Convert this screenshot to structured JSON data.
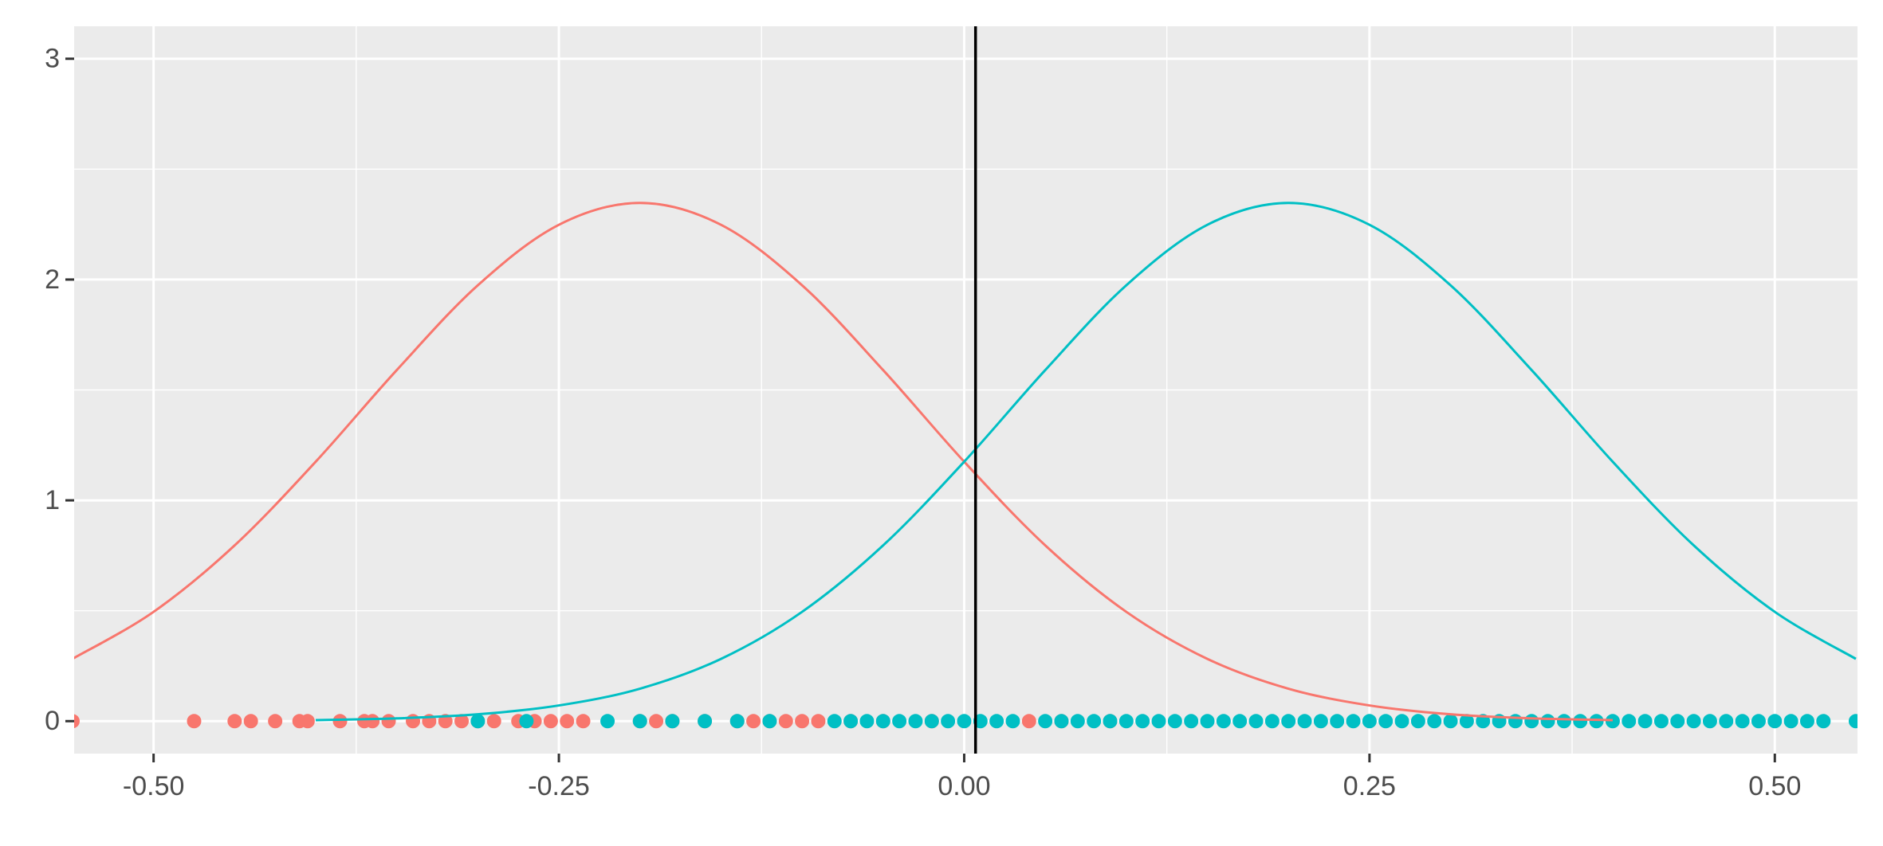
{
  "chart_data": {
    "type": "line",
    "xlim": [
      -0.549,
      0.551
    ],
    "ylim": [
      -0.147,
      3.147
    ],
    "xticks": [
      {
        "value": -0.5,
        "label": "-0.50"
      },
      -0.25,
      {
        "value": 0,
        "label": "0.00"
      },
      0.25,
      {
        "value": 0.5,
        "label": "0.50"
      }
    ],
    "yticks": [
      0,
      1,
      2,
      3
    ],
    "grid": true,
    "vline": {
      "x": 0.007,
      "color": "#000000"
    },
    "series": [
      {
        "color": "#F8766D",
        "x": [
          -0.55,
          -0.5,
          -0.45,
          -0.4,
          -0.35,
          -0.3,
          -0.25,
          -0.2,
          -0.15,
          -0.1,
          -0.05,
          0,
          0.05,
          0.1,
          0.15,
          0.2,
          0.25,
          0.3,
          0.35,
          0.4
        ],
        "values": [
          0.282,
          0.495,
          0.796,
          1.175,
          1.59,
          1.974,
          2.248,
          2.347,
          2.248,
          1.974,
          1.59,
          1.175,
          0.796,
          0.495,
          0.282,
          0.147,
          0.071,
          0.031,
          0.0125,
          0.0046
        ]
      },
      {
        "color": "#00BFC4",
        "x": [
          -0.4,
          -0.35,
          -0.3,
          -0.25,
          -0.2,
          -0.15,
          -0.1,
          -0.05,
          0,
          0.05,
          0.1,
          0.15,
          0.2,
          0.25,
          0.3,
          0.35,
          0.4,
          0.45,
          0.5,
          0.55
        ],
        "values": [
          0.0046,
          0.0125,
          0.031,
          0.071,
          0.147,
          0.282,
          0.495,
          0.796,
          1.175,
          1.59,
          1.974,
          2.248,
          2.347,
          2.248,
          1.974,
          1.59,
          1.175,
          0.796,
          0.495,
          0.282
        ]
      }
    ],
    "points": [
      {
        "color": "#F8766D",
        "x": [
          -0.55,
          -0.475,
          -0.45,
          -0.44,
          -0.425,
          -0.41,
          -0.405,
          -0.385,
          -0.37,
          -0.365,
          -0.355,
          -0.34,
          -0.33,
          -0.32,
          -0.31,
          -0.3,
          -0.29,
          -0.275,
          -0.265,
          -0.255,
          -0.245,
          -0.235,
          -0.2,
          -0.19,
          -0.18,
          -0.16,
          -0.14,
          -0.13,
          -0.12,
          -0.11,
          -0.1,
          -0.09,
          -0.07,
          -0.05,
          -0.02,
          0.04,
          0.06,
          0.09
        ],
        "values": [
          0,
          0,
          0,
          0,
          0,
          0,
          0,
          0,
          0,
          0,
          0,
          0,
          0,
          0,
          0,
          0,
          0,
          0,
          0,
          0,
          0,
          0,
          0,
          0,
          0,
          0,
          0,
          0,
          0,
          0,
          0,
          0,
          0,
          0,
          0,
          0,
          0,
          0
        ]
      },
      {
        "color": "#00BFC4",
        "x": [
          -0.3,
          -0.27,
          -0.22,
          -0.2,
          -0.18,
          -0.16,
          -0.14,
          -0.12,
          -0.08,
          -0.07,
          -0.06,
          -0.05,
          -0.04,
          -0.03,
          -0.02,
          -0.01,
          0,
          0.01,
          0.02,
          0.03,
          0.05,
          0.06,
          0.07,
          0.08,
          0.09,
          0.1,
          0.11,
          0.12,
          0.13,
          0.14,
          0.15,
          0.16,
          0.17,
          0.18,
          0.19,
          0.2,
          0.21,
          0.22,
          0.23,
          0.24,
          0.25,
          0.26,
          0.27,
          0.28,
          0.29,
          0.3,
          0.31,
          0.32,
          0.33,
          0.34,
          0.35,
          0.36,
          0.37,
          0.38,
          0.39,
          0.4,
          0.41,
          0.42,
          0.43,
          0.44,
          0.45,
          0.46,
          0.47,
          0.48,
          0.49,
          0.5,
          0.51,
          0.52,
          0.53,
          0.55
        ],
        "values": [
          0,
          0,
          0,
          0,
          0,
          0,
          0,
          0,
          0,
          0,
          0,
          0,
          0,
          0,
          0,
          0,
          0,
          0,
          0,
          0,
          0,
          0,
          0,
          0,
          0,
          0,
          0,
          0,
          0,
          0,
          0,
          0,
          0,
          0,
          0,
          0,
          0,
          0,
          0,
          0,
          0,
          0,
          0,
          0,
          0,
          0,
          0,
          0,
          0,
          0,
          0,
          0,
          0,
          0,
          0,
          0,
          0,
          0,
          0,
          0,
          0,
          0,
          0,
          0,
          0,
          0,
          0,
          0,
          0,
          0
        ]
      }
    ]
  }
}
